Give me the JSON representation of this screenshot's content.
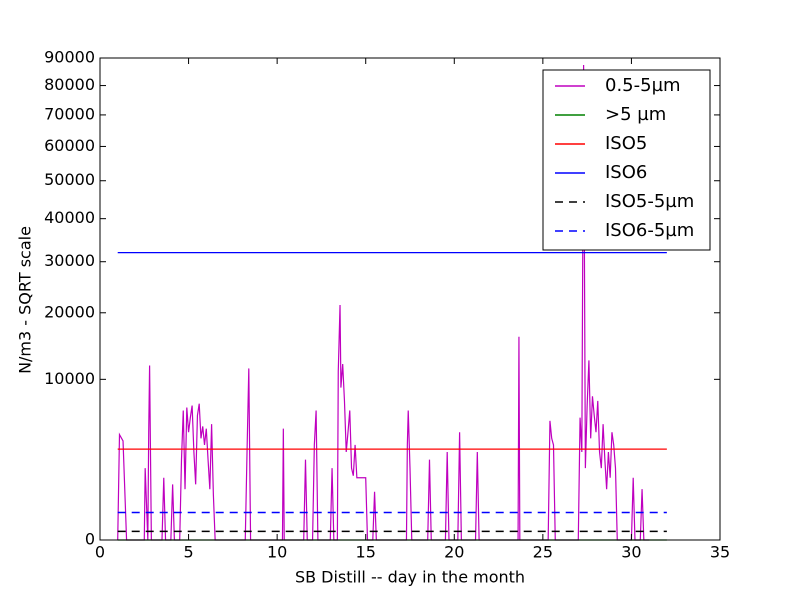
{
  "chart_data": {
    "type": "line",
    "xlabel": "SB Distill -- day in the month",
    "ylabel": "N/m3 - SQRT scale",
    "yscale": "sqrt",
    "xlim": [
      0,
      35
    ],
    "xticks": [
      0,
      5,
      10,
      15,
      20,
      25,
      30,
      35
    ],
    "ylim": [
      0,
      90000
    ],
    "yticks": [
      0,
      10000,
      20000,
      30000,
      40000,
      50000,
      60000,
      70000,
      80000,
      90000
    ],
    "legend": "upper right",
    "series": [
      {
        "name": "0.5-5µm",
        "color": "#bf00bf",
        "linestyle": "solid",
        "x": [
          1.0,
          1.1,
          1.3,
          1.5,
          2.5,
          2.55,
          2.7,
          2.75,
          2.8,
          2.9,
          3.5,
          3.6,
          3.7,
          4.0,
          4.1,
          4.2,
          4.5,
          4.6,
          4.7,
          4.8,
          4.9,
          5.0,
          5.1,
          5.2,
          5.3,
          5.4,
          5.5,
          5.6,
          5.7,
          5.8,
          5.9,
          6.0,
          6.1,
          6.2,
          6.3,
          6.4,
          6.5,
          8.2,
          8.3,
          8.4,
          8.5,
          10.3,
          10.35,
          10.4,
          11.5,
          11.6,
          11.7,
          12.0,
          12.1,
          12.2,
          12.3,
          13.0,
          13.1,
          13.2,
          13.4,
          13.45,
          13.55,
          13.6,
          13.7,
          13.8,
          13.9,
          14.0,
          14.1,
          14.2,
          14.3,
          14.4,
          14.5,
          15.0,
          15.1,
          15.4,
          15.5,
          15.6,
          17.3,
          17.35,
          17.4,
          17.5,
          17.6,
          18.5,
          18.6,
          18.7,
          19.5,
          19.6,
          19.7,
          20.2,
          20.3,
          20.4,
          21.2,
          21.3,
          21.4,
          23.6,
          23.65,
          23.7,
          25.3,
          25.4,
          25.5,
          25.6,
          25.7,
          27.0,
          27.1,
          27.2,
          27.3,
          27.4,
          27.5,
          27.6,
          27.7,
          27.8,
          27.9,
          28.0,
          28.1,
          28.2,
          28.3,
          28.4,
          28.5,
          28.6,
          28.7,
          28.8,
          28.9,
          29.0,
          29.1,
          29.2,
          30.0,
          30.1,
          30.2,
          30.5,
          30.6,
          30.7,
          31.0
        ],
        "values": [
          0,
          4300,
          3800,
          0,
          0,
          2000,
          0,
          4500,
          11800,
          0,
          0,
          1500,
          0,
          0,
          1200,
          0,
          0,
          2500,
          6500,
          1000,
          6800,
          4500,
          5800,
          7000,
          3000,
          1200,
          6000,
          7200,
          4000,
          5000,
          3500,
          4800,
          2500,
          1000,
          5200,
          800,
          0,
          0,
          3000,
          11400,
          0,
          0,
          4800,
          0,
          0,
          2500,
          0,
          0,
          3500,
          6500,
          0,
          0,
          2000,
          0,
          0,
          11000,
          21400,
          9000,
          12000,
          7500,
          3000,
          4500,
          6500,
          2000,
          1600,
          3500,
          1500,
          1500,
          0,
          0,
          900,
          0,
          0,
          3500,
          6500,
          2000,
          0,
          0,
          2500,
          0,
          0,
          3000,
          0,
          0,
          4500,
          0,
          0,
          3000,
          0,
          0,
          16000,
          0,
          0,
          5500,
          4000,
          3500,
          0,
          0,
          5800,
          3000,
          87400,
          2000,
          7000,
          12500,
          4000,
          8000,
          6000,
          4500,
          7500,
          3000,
          2000,
          5200,
          2500,
          1000,
          3000,
          1500,
          4500,
          3500,
          2000,
          0,
          0,
          1500,
          0,
          0,
          1000,
          0,
          0
        ]
      },
      {
        "name": ">5 µm",
        "color": "#008000",
        "linestyle": "solid",
        "x": [
          1,
          32
        ],
        "values": [
          0,
          0
        ]
      },
      {
        "name": "ISO5",
        "color": "#ff0000",
        "linestyle": "solid",
        "x": [
          1,
          32
        ],
        "values": [
          3200,
          3200
        ]
      },
      {
        "name": "ISO6",
        "color": "#0000ff",
        "linestyle": "solid",
        "x": [
          1,
          32
        ],
        "values": [
          32000,
          32000
        ]
      },
      {
        "name": "ISO5-5µm",
        "color": "#000000",
        "linestyle": "dashed",
        "x": [
          1,
          32
        ],
        "values": [
          29,
          29
        ]
      },
      {
        "name": "ISO6-5µm",
        "color": "#0000ff",
        "linestyle": "dashed",
        "x": [
          1,
          32
        ],
        "values": [
          293,
          293
        ]
      }
    ]
  }
}
